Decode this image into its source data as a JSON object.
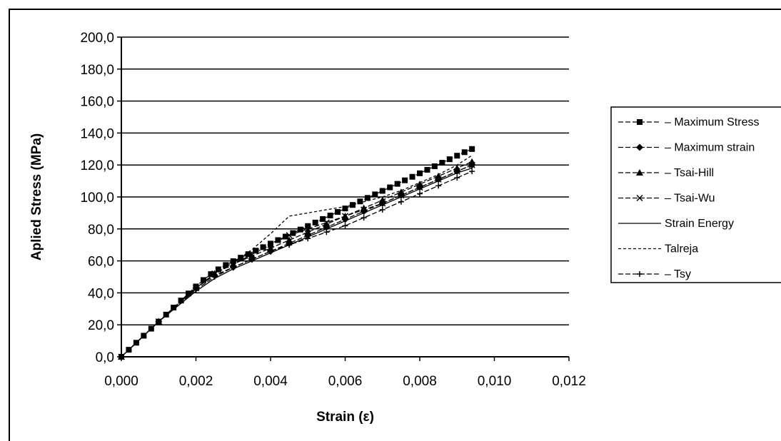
{
  "chart_data": {
    "type": "line",
    "title": "",
    "xlabel": "Strain (ε)",
    "ylabel": "Aplied Stress (MPa)",
    "xlim": [
      0,
      0.012
    ],
    "ylim": [
      0,
      200
    ],
    "x_ticks": [
      "0,000",
      "0,002",
      "0,004",
      "0,006",
      "0,008",
      "0,010",
      "0,012"
    ],
    "y_ticks": [
      "0,0",
      "20,0",
      "40,0",
      "60,0",
      "80,0",
      "100,0",
      "120,0",
      "140,0",
      "160,0",
      "180,0",
      "200,0"
    ],
    "grid": "horizontal major lines",
    "legend_position": "right",
    "series": [
      {
        "name": "– Maximum Stress",
        "marker": "square",
        "dash": "dashed",
        "x": [
          0,
          0.0002,
          0.0004,
          0.0006,
          0.0008,
          0.001,
          0.0012,
          0.0014,
          0.0016,
          0.0018,
          0.002,
          0.0022,
          0.0024,
          0.0026,
          0.0028,
          0.003,
          0.0032,
          0.0034,
          0.0036,
          0.0038,
          0.004,
          0.0042,
          0.0044,
          0.0046,
          0.0048,
          0.005,
          0.0052,
          0.0054,
          0.0056,
          0.0058,
          0.006,
          0.0062,
          0.0064,
          0.0066,
          0.0068,
          0.007,
          0.0072,
          0.0074,
          0.0076,
          0.0078,
          0.008,
          0.0082,
          0.0084,
          0.0086,
          0.0088,
          0.009,
          0.0092,
          0.0094
        ],
        "y": [
          0,
          4.4,
          8.8,
          13.2,
          17.6,
          22,
          26.4,
          30.8,
          35.2,
          39.6,
          44,
          48,
          51.7,
          54.7,
          57.4,
          59.8,
          62,
          64.2,
          66.4,
          68.6,
          70.8,
          73,
          75.2,
          77.4,
          79.6,
          81.8,
          84,
          86.2,
          88.4,
          90.6,
          92.8,
          95,
          97.2,
          99.4,
          101.6,
          103.8,
          106,
          108.2,
          110.4,
          112.6,
          114.8,
          117,
          119.2,
          121.4,
          123.6,
          125.8,
          128,
          130
        ]
      },
      {
        "name": "– Maximum strain",
        "marker": "diamond",
        "dash": "dashed",
        "x": [
          0,
          0.001,
          0.002,
          0.0025,
          0.003,
          0.0035,
          0.004,
          0.0045,
          0.005,
          0.0055,
          0.006,
          0.0065,
          0.007,
          0.0075,
          0.008,
          0.0085,
          0.009,
          0.0094
        ],
        "y": [
          0,
          22,
          43,
          51,
          56,
          61,
          66,
          71,
          76,
          81,
          86,
          91,
          96,
          101,
          106,
          111,
          116,
          120
        ]
      },
      {
        "name": "– Tsai-Hill",
        "marker": "triangle",
        "dash": "dashed",
        "x": [
          0,
          0.001,
          0.002,
          0.0025,
          0.003,
          0.0035,
          0.004,
          0.0045,
          0.005,
          0.0055,
          0.006,
          0.0065,
          0.007,
          0.0075,
          0.008,
          0.0085,
          0.009,
          0.0094
        ],
        "y": [
          0,
          22,
          43,
          52,
          58,
          63,
          68,
          73,
          78,
          83,
          88,
          93,
          98,
          103,
          108,
          113,
          118,
          122
        ]
      },
      {
        "name": "– Tsai-Wu",
        "marker": "cross",
        "dash": "dashed",
        "x": [
          0,
          0.001,
          0.002,
          0.0025,
          0.003,
          0.0035,
          0.004,
          0.0045,
          0.005,
          0.0055,
          0.006,
          0.0065,
          0.007,
          0.0075,
          0.008,
          0.0085,
          0.009,
          0.0094
        ],
        "y": [
          0,
          22,
          43,
          52,
          58,
          64,
          70,
          76,
          80,
          84,
          88,
          92,
          96,
          101,
          106,
          111,
          116,
          120
        ]
      },
      {
        "name": "Strain Energy",
        "marker": "none",
        "dash": "solid",
        "x": [
          0,
          0.001,
          0.002,
          0.0025,
          0.003,
          0.0035,
          0.004,
          0.0045,
          0.005,
          0.0055,
          0.006,
          0.0065,
          0.007,
          0.0075,
          0.008,
          0.0085,
          0.009,
          0.0094
        ],
        "y": [
          0,
          22,
          41,
          49,
          55,
          60,
          65,
          70,
          75,
          80,
          85,
          90,
          95,
          100,
          105,
          110,
          115,
          118
        ]
      },
      {
        "name": "Talreja",
        "marker": "none",
        "dash": "dotted",
        "x": [
          0,
          0.001,
          0.002,
          0.0025,
          0.003,
          0.0035,
          0.004,
          0.0045,
          0.005,
          0.0055,
          0.006,
          0.0065,
          0.007,
          0.0075,
          0.008,
          0.0085,
          0.009,
          0.0094
        ],
        "y": [
          0,
          22,
          43,
          52,
          59,
          67,
          77,
          88,
          90,
          92,
          94,
          97,
          100,
          104,
          109,
          114,
          120,
          126
        ]
      },
      {
        "name": "– Tsy",
        "marker": "plus",
        "dash": "dashed",
        "x": [
          0,
          0.001,
          0.002,
          0.0025,
          0.003,
          0.0035,
          0.004,
          0.0045,
          0.005,
          0.0055,
          0.006,
          0.0065,
          0.007,
          0.0075,
          0.008,
          0.0085,
          0.009,
          0.0094
        ],
        "y": [
          0,
          22,
          42,
          50,
          56,
          61,
          66,
          70,
          74,
          78,
          82,
          87,
          92,
          97,
          102,
          107,
          112,
          116
        ]
      }
    ]
  }
}
